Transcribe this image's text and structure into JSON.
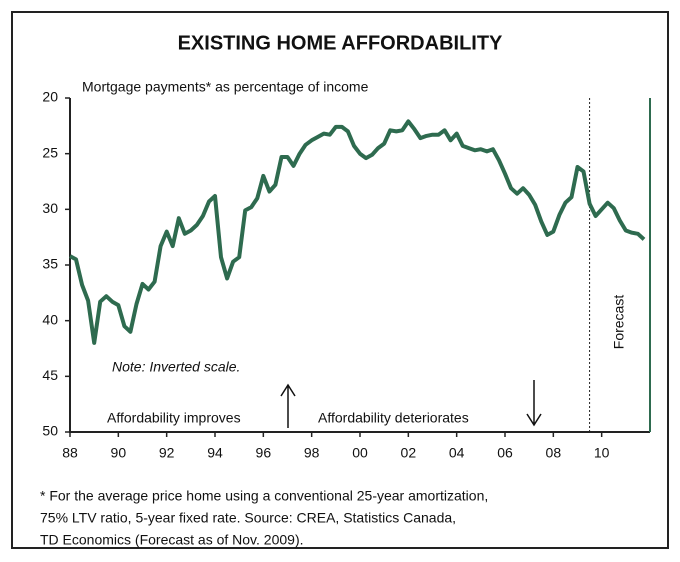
{
  "chart_data": {
    "type": "line",
    "title": "EXISTING HOME AFFORDABILITY",
    "subtitle": "Mortgage payments* as percentage of income",
    "annotations": {
      "note": "Note: Inverted scale.",
      "improves": "Affordability improves",
      "deteriorates": "Affordability deteriorates",
      "forecast": "Forecast"
    },
    "forecast_x": 2009.5,
    "footnote": [
      "* For the average price home using a conventional 25-year amortization,",
      "75% LTV ratio, 5-year fixed rate. Source: CREA, Statistics Canada,",
      "TD Economics (Forecast as of Nov. 2009)."
    ],
    "x": [
      1988,
      1988.25,
      1988.5,
      1988.75,
      1989,
      1989.25,
      1989.5,
      1989.75,
      1990,
      1990.25,
      1990.5,
      1990.75,
      1991,
      1991.25,
      1991.5,
      1991.75,
      1992,
      1992.25,
      1992.5,
      1992.75,
      1993,
      1993.25,
      1993.5,
      1993.75,
      1994,
      1994.25,
      1994.5,
      1994.75,
      1995,
      1995.25,
      1995.5,
      1995.75,
      1996,
      1996.25,
      1996.5,
      1996.75,
      1997,
      1997.25,
      1997.5,
      1997.75,
      1998,
      1998.25,
      1998.5,
      1998.75,
      1999,
      1999.25,
      1999.5,
      1999.75,
      2000,
      2000.25,
      2000.5,
      2000.75,
      2001,
      2001.25,
      2001.5,
      2001.75,
      2002,
      2002.25,
      2002.5,
      2002.75,
      2003,
      2003.25,
      2003.5,
      2003.75,
      2004,
      2004.25,
      2004.5,
      2004.75,
      2005,
      2005.25,
      2005.5,
      2005.75,
      2006,
      2006.25,
      2006.5,
      2006.75,
      2007,
      2007.25,
      2007.5,
      2007.75,
      2008,
      2008.25,
      2008.5,
      2008.75,
      2009,
      2009.25,
      2009.5,
      2009.75,
      2010,
      2010.25,
      2010.5,
      2010.75,
      2011,
      2011.25,
      2011.5,
      2011.75
    ],
    "series": [
      {
        "color": "#2e6b4f",
        "values": [
          34.2,
          34.5,
          36.8,
          38.2,
          42.0,
          38.3,
          37.8,
          38.3,
          38.6,
          40.5,
          41.0,
          38.5,
          36.7,
          37.2,
          36.5,
          33.3,
          32.0,
          33.3,
          30.8,
          32.2,
          31.9,
          31.4,
          30.6,
          29.3,
          28.8,
          34.3,
          36.2,
          34.7,
          34.3,
          30.1,
          29.8,
          29.0,
          27.0,
          28.4,
          27.8,
          25.3,
          25.3,
          26.1,
          25.0,
          24.2,
          23.8,
          23.5,
          23.2,
          23.3,
          22.6,
          22.6,
          23.0,
          24.3,
          25.0,
          25.4,
          25.1,
          24.5,
          24.1,
          22.9,
          23.0,
          22.9,
          22.1,
          22.8,
          23.6,
          23.4,
          23.3,
          23.3,
          22.9,
          23.8,
          23.2,
          24.3,
          24.5,
          24.7,
          24.6,
          24.8,
          24.6,
          25.6,
          26.8,
          28.1,
          28.6,
          28.1,
          28.7,
          29.6,
          31.1,
          32.3,
          32.0,
          30.5,
          29.4,
          28.9,
          26.2,
          26.6,
          29.5,
          30.6,
          30.0,
          29.4,
          29.9,
          31.0,
          31.9,
          32.1,
          32.2,
          32.7
        ]
      }
    ],
    "xlim": [
      1988,
      2012
    ],
    "xticks": [
      {
        "value": 1988,
        "label": "88"
      },
      {
        "value": 1990,
        "label": "90"
      },
      {
        "value": 1992,
        "label": "92"
      },
      {
        "value": 1994,
        "label": "94"
      },
      {
        "value": 1996,
        "label": "96"
      },
      {
        "value": 1998,
        "label": "98"
      },
      {
        "value": 2000,
        "label": "00"
      },
      {
        "value": 2002,
        "label": "02"
      },
      {
        "value": 2004,
        "label": "04"
      },
      {
        "value": 2006,
        "label": "06"
      },
      {
        "value": 2008,
        "label": "08"
      },
      {
        "value": 2010,
        "label": "10"
      }
    ],
    "ylim": [
      20,
      50
    ],
    "yticks": [
      20,
      25,
      30,
      35,
      40,
      45,
      50
    ],
    "y_inverted": true
  }
}
